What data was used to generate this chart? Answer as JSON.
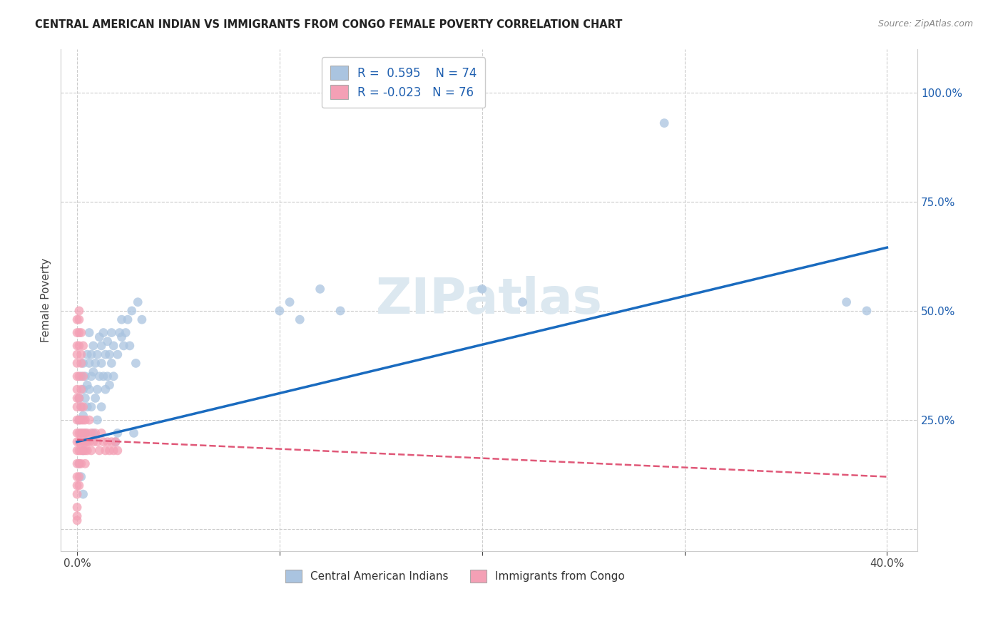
{
  "title": "CENTRAL AMERICAN INDIAN VS IMMIGRANTS FROM CONGO FEMALE POVERTY CORRELATION CHART",
  "source": "Source: ZipAtlas.com",
  "ylabel": "Female Poverty",
  "xlim": [
    -0.008,
    0.415
  ],
  "ylim": [
    -0.05,
    1.1
  ],
  "blue_color": "#aac4e0",
  "pink_color": "#f4a0b5",
  "blue_line_color": "#1a6bbf",
  "pink_line_color": "#e05878",
  "watermark": "ZIPatlas",
  "legend_label1": "Central American Indians",
  "legend_label2": "Immigrants from Congo",
  "blue_line": [
    0.0,
    0.2,
    0.4,
    0.645
  ],
  "pink_line": [
    0.0,
    0.205,
    0.4,
    0.12
  ],
  "blue_points": [
    [
      0.001,
      0.3
    ],
    [
      0.001,
      0.25
    ],
    [
      0.002,
      0.35
    ],
    [
      0.002,
      0.28
    ],
    [
      0.002,
      0.22
    ],
    [
      0.003,
      0.32
    ],
    [
      0.003,
      0.26
    ],
    [
      0.003,
      0.38
    ],
    [
      0.004,
      0.3
    ],
    [
      0.004,
      0.35
    ],
    [
      0.004,
      0.22
    ],
    [
      0.005,
      0.4
    ],
    [
      0.005,
      0.28
    ],
    [
      0.005,
      0.33
    ],
    [
      0.006,
      0.38
    ],
    [
      0.006,
      0.32
    ],
    [
      0.006,
      0.45
    ],
    [
      0.007,
      0.4
    ],
    [
      0.007,
      0.35
    ],
    [
      0.007,
      0.28
    ],
    [
      0.008,
      0.42
    ],
    [
      0.008,
      0.36
    ],
    [
      0.008,
      0.22
    ],
    [
      0.009,
      0.38
    ],
    [
      0.009,
      0.3
    ],
    [
      0.01,
      0.32
    ],
    [
      0.01,
      0.25
    ],
    [
      0.01,
      0.4
    ],
    [
      0.011,
      0.44
    ],
    [
      0.011,
      0.35
    ],
    [
      0.012,
      0.42
    ],
    [
      0.012,
      0.38
    ],
    [
      0.012,
      0.28
    ],
    [
      0.013,
      0.45
    ],
    [
      0.013,
      0.35
    ],
    [
      0.014,
      0.4
    ],
    [
      0.014,
      0.32
    ],
    [
      0.015,
      0.43
    ],
    [
      0.015,
      0.35
    ],
    [
      0.016,
      0.4
    ],
    [
      0.016,
      0.33
    ],
    [
      0.017,
      0.45
    ],
    [
      0.017,
      0.38
    ],
    [
      0.018,
      0.42
    ],
    [
      0.018,
      0.35
    ],
    [
      0.019,
      0.2
    ],
    [
      0.02,
      0.4
    ],
    [
      0.02,
      0.22
    ],
    [
      0.021,
      0.45
    ],
    [
      0.022,
      0.44
    ],
    [
      0.022,
      0.48
    ],
    [
      0.023,
      0.42
    ],
    [
      0.024,
      0.45
    ],
    [
      0.025,
      0.48
    ],
    [
      0.026,
      0.42
    ],
    [
      0.027,
      0.5
    ],
    [
      0.028,
      0.22
    ],
    [
      0.029,
      0.38
    ],
    [
      0.03,
      0.52
    ],
    [
      0.032,
      0.48
    ],
    [
      0.001,
      0.15
    ],
    [
      0.002,
      0.12
    ],
    [
      0.003,
      0.18
    ],
    [
      0.003,
      0.08
    ],
    [
      0.1,
      0.5
    ],
    [
      0.105,
      0.52
    ],
    [
      0.11,
      0.48
    ],
    [
      0.12,
      0.55
    ],
    [
      0.13,
      0.5
    ],
    [
      0.2,
      0.55
    ],
    [
      0.22,
      0.52
    ],
    [
      0.29,
      0.93
    ],
    [
      0.38,
      0.52
    ],
    [
      0.39,
      0.5
    ]
  ],
  "pink_points": [
    [
      0.0,
      0.2
    ],
    [
      0.0,
      0.22
    ],
    [
      0.0,
      0.18
    ],
    [
      0.0,
      0.15
    ],
    [
      0.0,
      0.25
    ],
    [
      0.0,
      0.28
    ],
    [
      0.0,
      0.3
    ],
    [
      0.0,
      0.12
    ],
    [
      0.0,
      0.08
    ],
    [
      0.0,
      0.1
    ],
    [
      0.0,
      0.05
    ],
    [
      0.0,
      0.35
    ],
    [
      0.0,
      0.38
    ],
    [
      0.0,
      0.4
    ],
    [
      0.0,
      0.42
    ],
    [
      0.0,
      0.32
    ],
    [
      0.0,
      0.45
    ],
    [
      0.0,
      0.48
    ],
    [
      0.0,
      0.02
    ],
    [
      0.0,
      0.03
    ],
    [
      0.001,
      0.22
    ],
    [
      0.001,
      0.18
    ],
    [
      0.001,
      0.25
    ],
    [
      0.001,
      0.15
    ],
    [
      0.001,
      0.12
    ],
    [
      0.001,
      0.3
    ],
    [
      0.001,
      0.2
    ],
    [
      0.001,
      0.35
    ],
    [
      0.001,
      0.1
    ],
    [
      0.001,
      0.45
    ],
    [
      0.001,
      0.42
    ],
    [
      0.001,
      0.48
    ],
    [
      0.001,
      0.5
    ],
    [
      0.002,
      0.22
    ],
    [
      0.002,
      0.18
    ],
    [
      0.002,
      0.25
    ],
    [
      0.002,
      0.28
    ],
    [
      0.002,
      0.2
    ],
    [
      0.002,
      0.15
    ],
    [
      0.002,
      0.32
    ],
    [
      0.002,
      0.38
    ],
    [
      0.002,
      0.4
    ],
    [
      0.002,
      0.45
    ],
    [
      0.003,
      0.2
    ],
    [
      0.003,
      0.25
    ],
    [
      0.003,
      0.22
    ],
    [
      0.003,
      0.18
    ],
    [
      0.003,
      0.28
    ],
    [
      0.003,
      0.35
    ],
    [
      0.003,
      0.42
    ],
    [
      0.004,
      0.22
    ],
    [
      0.004,
      0.18
    ],
    [
      0.004,
      0.25
    ],
    [
      0.004,
      0.2
    ],
    [
      0.004,
      0.15
    ],
    [
      0.005,
      0.22
    ],
    [
      0.005,
      0.2
    ],
    [
      0.005,
      0.18
    ],
    [
      0.006,
      0.2
    ],
    [
      0.006,
      0.25
    ],
    [
      0.007,
      0.22
    ],
    [
      0.007,
      0.18
    ],
    [
      0.008,
      0.2
    ],
    [
      0.009,
      0.22
    ],
    [
      0.01,
      0.2
    ],
    [
      0.011,
      0.18
    ],
    [
      0.012,
      0.22
    ],
    [
      0.013,
      0.2
    ],
    [
      0.014,
      0.18
    ],
    [
      0.015,
      0.2
    ],
    [
      0.016,
      0.18
    ],
    [
      0.017,
      0.2
    ],
    [
      0.018,
      0.18
    ],
    [
      0.019,
      0.2
    ],
    [
      0.02,
      0.18
    ]
  ]
}
